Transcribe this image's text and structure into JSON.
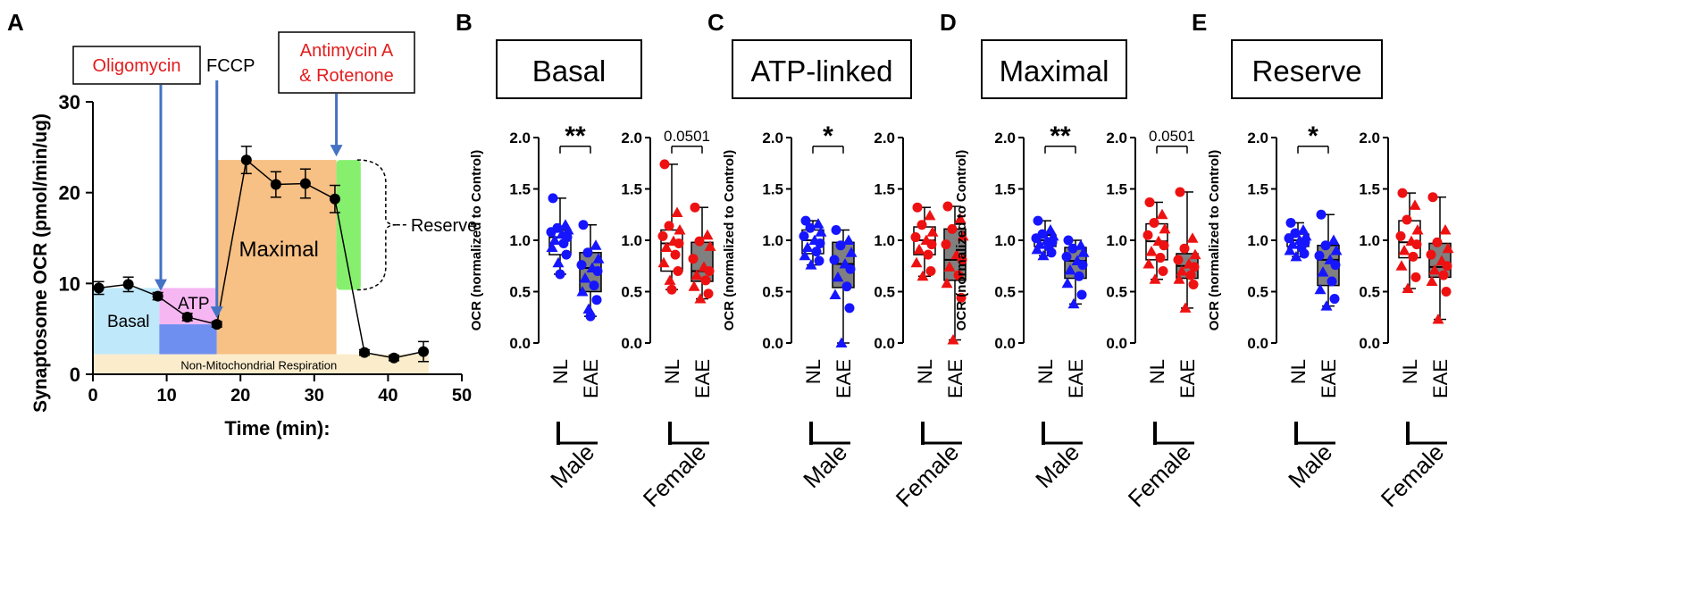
{
  "figure": {
    "panel_letters": [
      "A",
      "B",
      "C",
      "D",
      "E"
    ]
  },
  "colors": {
    "male": "#1515ff",
    "female": "#ee1111",
    "annotation_red": "#e31c1c",
    "arrow": "#4472c4",
    "basal_fill": "#bfe8fb",
    "atp_fill": "#f5b6f2",
    "atp_dark_fill": "#6f8ff0",
    "maximal_fill": "#f7c084",
    "reserve_fill": "#86f06e",
    "nonmito_fill": "#fbeccb",
    "eae_box_fill": "#808080"
  },
  "chart_data": [
    {
      "panel": "A",
      "type": "line",
      "title": "",
      "xlabel": "Time (min):",
      "ylabel": "Synaptosome OCR (pmol/min/ug)",
      "xlim": [
        0,
        50
      ],
      "ylim": [
        0,
        30
      ],
      "xticks": [
        0,
        10,
        20,
        30,
        40,
        50
      ],
      "yticks": [
        0,
        10,
        20,
        30
      ],
      "series": [
        {
          "name": "OCR",
          "x": [
            0.8,
            4.8,
            8.8,
            12.8,
            16.8,
            20.8,
            24.8,
            28.8,
            32.8,
            36.8,
            40.8,
            44.8
          ],
          "y": [
            9.5,
            9.9,
            8.6,
            6.3,
            5.5,
            23.6,
            20.9,
            21.0,
            19.3,
            2.4,
            1.8,
            2.5
          ],
          "err": [
            0.7,
            0.8,
            0.4,
            0.4,
            0.3,
            1.5,
            1.4,
            1.6,
            1.5,
            0.3,
            0.3,
            1.1
          ]
        }
      ],
      "regions": [
        {
          "name": "Basal",
          "label": "Basal",
          "x": [
            0,
            9
          ],
          "y": [
            2.2,
            9.5
          ]
        },
        {
          "name": "ATP",
          "label": "ATP",
          "x": [
            9,
            16.8
          ],
          "y": [
            5.5,
            9.5
          ]
        },
        {
          "name": "ATP-dark",
          "label": "",
          "x": [
            9,
            16.8
          ],
          "y": [
            2.2,
            5.5
          ]
        },
        {
          "name": "Maximal",
          "label": "Maximal",
          "x": [
            16.8,
            33
          ],
          "y": [
            2.2,
            23.6
          ]
        },
        {
          "name": "Reserve",
          "label": "",
          "x": [
            33,
            36.3
          ],
          "y": [
            9.3,
            23.6
          ]
        },
        {
          "name": "Non-Mitochondrial",
          "label": "Non-Mitochondrial Respiration",
          "x": [
            0,
            45.5
          ],
          "y": [
            0,
            2.2
          ]
        }
      ],
      "annotations": [
        {
          "label": "Oligomycin",
          "x": 9.2,
          "red": true
        },
        {
          "label": "FCCP",
          "x": 16.8,
          "red": false
        },
        {
          "label_lines": [
            "Antimycin A",
            "& Rotenone"
          ],
          "x": 33.0,
          "red": true
        }
      ],
      "reserve_label": "Reserve"
    },
    {
      "panel": "B",
      "type": "box",
      "title": "Basal",
      "ylabel": "OCR (normalized to Control)",
      "ylim": [
        0,
        2
      ],
      "yticks": [
        "0.0",
        "0.5",
        "1.0",
        "1.5",
        "2.0"
      ],
      "groups": [
        {
          "name": "Male",
          "significance": "**",
          "boxes": [
            {
              "label": "NL",
              "min": 0.67,
              "q1": 0.86,
              "median": 1.03,
              "q3": 1.1,
              "max": 1.41,
              "points": [
                1.41,
                1.15,
                1.12,
                1.1,
                1.08,
                1.06,
                1.03,
                1.0,
                0.97,
                0.93,
                0.86,
                0.78,
                0.67
              ]
            },
            {
              "label": "EAE",
              "min": 0.26,
              "q1": 0.5,
              "median": 0.73,
              "q3": 0.88,
              "max": 1.15,
              "points": [
                1.15,
                0.95,
                0.88,
                0.82,
                0.76,
                0.73,
                0.7,
                0.63,
                0.56,
                0.5,
                0.42,
                0.33,
                0.26
              ]
            }
          ]
        },
        {
          "name": "Female",
          "significance": "0.0501",
          "boxes": [
            {
              "label": "NL",
              "min": 0.52,
              "q1": 0.7,
              "median": 0.97,
              "q3": 1.1,
              "max": 1.74,
              "points": [
                1.74,
                1.27,
                1.14,
                1.1,
                1.04,
                0.99,
                0.97,
                0.93,
                0.86,
                0.78,
                0.7,
                0.61,
                0.52
              ]
            },
            {
              "label": "EAE",
              "min": 0.43,
              "q1": 0.6,
              "median": 0.7,
              "q3": 0.98,
              "max": 1.32,
              "points": [
                1.32,
                1.05,
                0.99,
                0.94,
                0.82,
                0.74,
                0.7,
                0.66,
                0.61,
                0.55,
                0.48,
                0.43
              ]
            }
          ]
        }
      ]
    },
    {
      "panel": "C",
      "type": "box",
      "title": "ATP-linked",
      "ylabel": "OCR (normalized to Control)",
      "ylim": [
        0,
        2
      ],
      "yticks": [
        "0.0",
        "0.5",
        "1.0",
        "1.5",
        "2.0"
      ],
      "groups": [
        {
          "name": "Male",
          "significance": "*",
          "boxes": [
            {
              "label": "NL",
              "min": 0.76,
              "q1": 0.87,
              "median": 1.0,
              "q3": 1.1,
              "max": 1.19,
              "points": [
                1.19,
                1.16,
                1.12,
                1.08,
                1.04,
                1.0,
                0.97,
                0.93,
                0.89,
                0.85,
                0.8,
                0.76
              ]
            },
            {
              "label": "EAE",
              "min": 0.0,
              "q1": 0.54,
              "median": 0.77,
              "q3": 0.98,
              "max": 1.1,
              "points": [
                1.1,
                1.0,
                0.95,
                0.88,
                0.81,
                0.77,
                0.72,
                0.64,
                0.55,
                0.47,
                0.34,
                0.0
              ]
            }
          ]
        },
        {
          "name": "Female",
          "significance": "",
          "boxes": [
            {
              "label": "NL",
              "min": 0.65,
              "q1": 0.86,
              "median": 1.0,
              "q3": 1.13,
              "max": 1.32,
              "points": [
                1.32,
                1.24,
                1.15,
                1.08,
                1.03,
                1.0,
                0.96,
                0.91,
                0.86,
                0.78,
                0.7,
                0.65
              ]
            },
            {
              "label": "EAE",
              "min": 0.03,
              "q1": 0.61,
              "median": 0.81,
              "q3": 1.11,
              "max": 1.33,
              "points": [
                1.33,
                1.21,
                1.11,
                1.04,
                0.96,
                0.86,
                0.81,
                0.74,
                0.66,
                0.58,
                0.44,
                0.03
              ]
            }
          ]
        }
      ]
    },
    {
      "panel": "D",
      "type": "box",
      "title": "Maximal",
      "ylabel": "OCR (normalized to Control)",
      "ylim": [
        0,
        2
      ],
      "yticks": [
        "0.0",
        "0.5",
        "1.0",
        "1.5",
        "2.0"
      ],
      "groups": [
        {
          "name": "Male",
          "significance": "**",
          "boxes": [
            {
              "label": "NL",
              "min": 0.85,
              "q1": 0.94,
              "median": 1.0,
              "q3": 1.05,
              "max": 1.19,
              "points": [
                1.19,
                1.1,
                1.06,
                1.04,
                1.02,
                1.0,
                0.98,
                0.96,
                0.94,
                0.91,
                0.88,
                0.85
              ]
            },
            {
              "label": "EAE",
              "min": 0.38,
              "q1": 0.63,
              "median": 0.8,
              "q3": 0.93,
              "max": 1.0,
              "points": [
                1.0,
                0.95,
                0.92,
                0.88,
                0.84,
                0.8,
                0.76,
                0.71,
                0.65,
                0.58,
                0.47,
                0.38
              ]
            }
          ]
        },
        {
          "name": "Female",
          "significance": "0.0501",
          "boxes": [
            {
              "label": "NL",
              "min": 0.62,
              "q1": 0.81,
              "median": 0.99,
              "q3": 1.16,
              "max": 1.37,
              "points": [
                1.37,
                1.25,
                1.17,
                1.11,
                1.05,
                0.99,
                0.95,
                0.89,
                0.83,
                0.77,
                0.7,
                0.62
              ]
            },
            {
              "label": "EAE",
              "min": 0.34,
              "q1": 0.63,
              "median": 0.75,
              "q3": 0.87,
              "max": 1.47,
              "points": [
                1.47,
                1.02,
                0.92,
                0.86,
                0.81,
                0.77,
                0.74,
                0.7,
                0.66,
                0.62,
                0.57,
                0.34
              ]
            }
          ]
        }
      ]
    },
    {
      "panel": "E",
      "type": "box",
      "title": "Reserve",
      "ylabel": "OCR (normalized to Control)",
      "ylim": [
        0,
        2
      ],
      "yticks": [
        "0.0",
        "0.5",
        "1.0",
        "1.5",
        "2.0"
      ],
      "groups": [
        {
          "name": "Male",
          "significance": "*",
          "boxes": [
            {
              "label": "NL",
              "min": 0.84,
              "q1": 0.94,
              "median": 1.0,
              "q3": 1.06,
              "max": 1.17,
              "points": [
                1.17,
                1.1,
                1.07,
                1.04,
                1.02,
                1.0,
                0.98,
                0.96,
                0.93,
                0.9,
                0.87,
                0.84
              ]
            },
            {
              "label": "EAE",
              "min": 0.36,
              "q1": 0.56,
              "median": 0.81,
              "q3": 0.95,
              "max": 1.25,
              "points": [
                1.25,
                1.0,
                0.95,
                0.9,
                0.85,
                0.81,
                0.76,
                0.69,
                0.6,
                0.52,
                0.43,
                0.36
              ]
            }
          ]
        },
        {
          "name": "Female",
          "significance": "",
          "boxes": [
            {
              "label": "NL",
              "min": 0.53,
              "q1": 0.83,
              "median": 0.98,
              "q3": 1.19,
              "max": 1.46,
              "points": [
                1.46,
                1.34,
                1.2,
                1.1,
                1.04,
                0.99,
                0.96,
                0.9,
                0.84,
                0.75,
                0.64,
                0.53
              ]
            },
            {
              "label": "EAE",
              "min": 0.23,
              "q1": 0.64,
              "median": 0.74,
              "q3": 0.97,
              "max": 1.42,
              "points": [
                1.42,
                1.1,
                0.98,
                0.92,
                0.86,
                0.8,
                0.75,
                0.71,
                0.66,
                0.6,
                0.5,
                0.23
              ]
            }
          ]
        }
      ]
    }
  ]
}
